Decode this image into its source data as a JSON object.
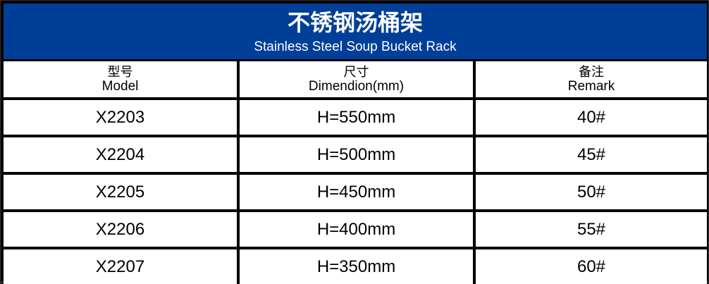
{
  "title": {
    "cn": "不锈钢汤桶架",
    "en": "Stainless Steel Soup Bucket Rack"
  },
  "colors": {
    "header_bg": "#003f98",
    "border": "#000000"
  },
  "columns": [
    {
      "cn": "型号",
      "en": "Model"
    },
    {
      "cn": "尺寸",
      "en": "Dimendion(mm)"
    },
    {
      "cn": "备注",
      "en": "Remark"
    }
  ],
  "rows": [
    {
      "model": "X2203",
      "size": "H=550mm",
      "remark": "40#"
    },
    {
      "model": "X2204",
      "size": "H=500mm",
      "remark": "45#"
    },
    {
      "model": "X2205",
      "size": "H=450mm",
      "remark": "50#"
    },
    {
      "model": "X2206",
      "size": "H=400mm",
      "remark": "55#"
    },
    {
      "model": "X2207",
      "size": "H=350mm",
      "remark": "60#"
    }
  ]
}
